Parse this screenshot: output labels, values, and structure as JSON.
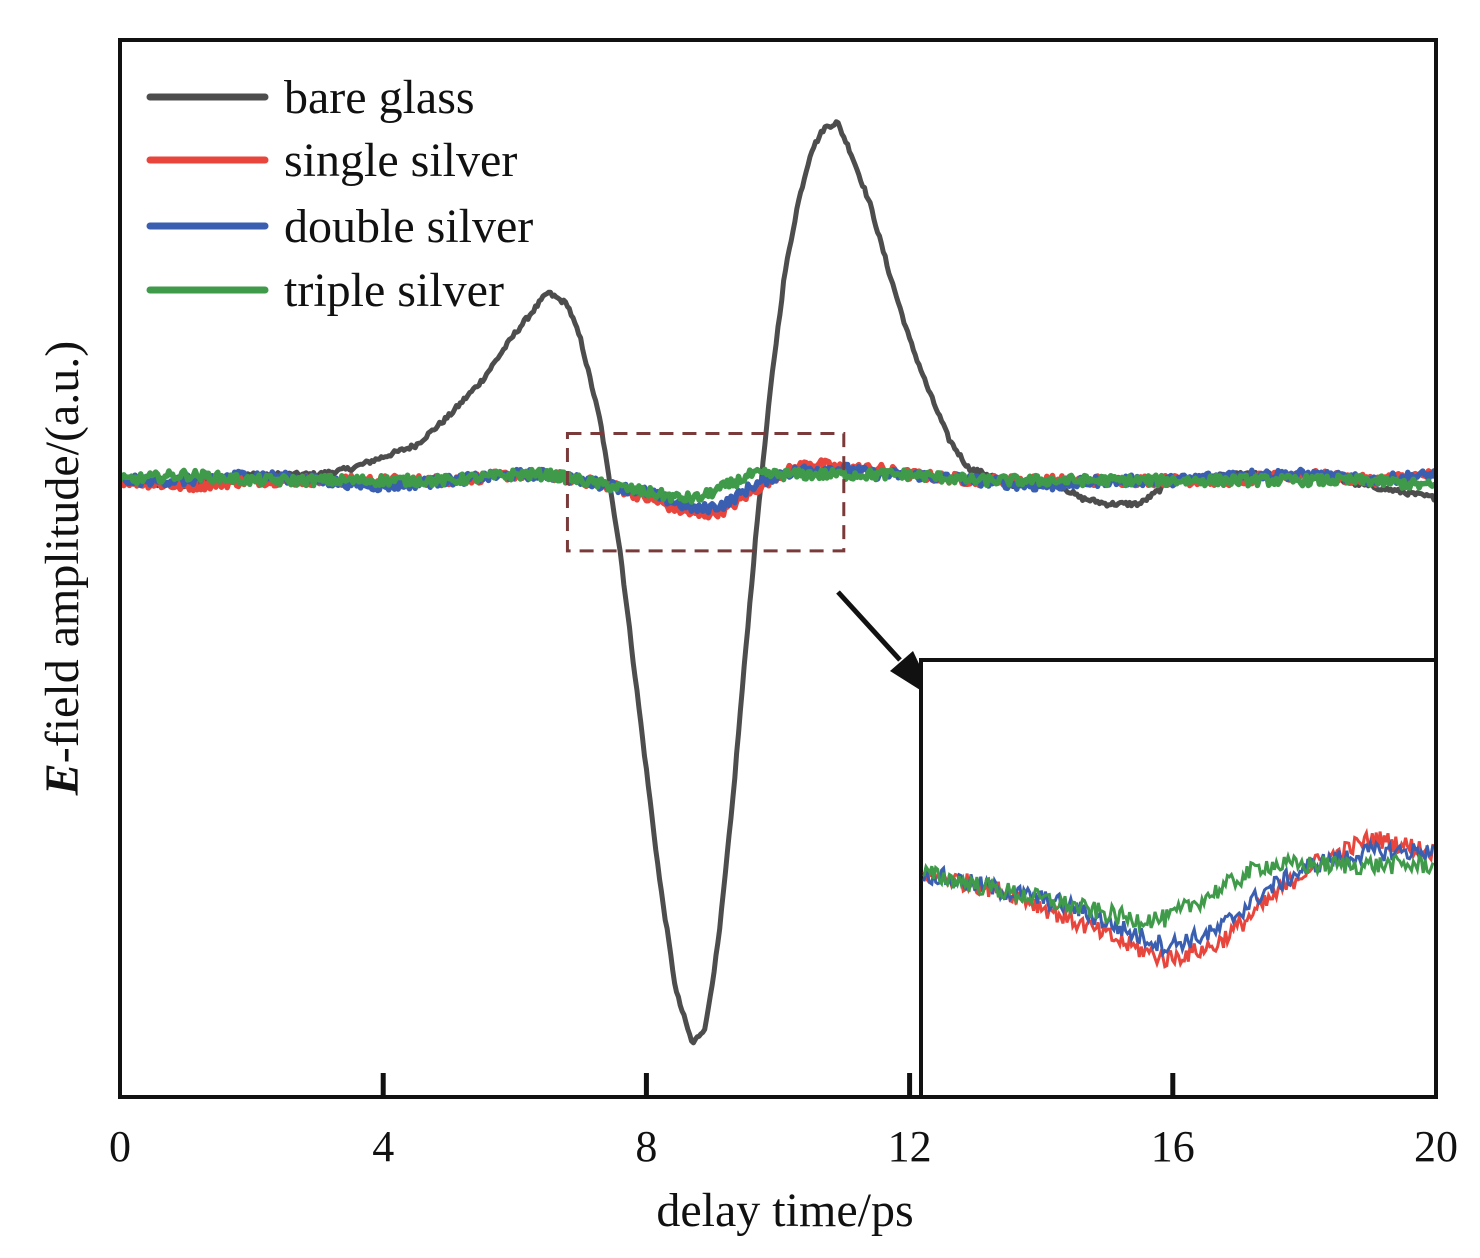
{
  "chart_data": {
    "type": "line",
    "xlabel": "delay time/ps",
    "ylabel_prefix": "E",
    "ylabel_rest": "-field amplitude/(a.u.)",
    "xlim": [
      0,
      20
    ],
    "ylim": [
      -1.05,
      0.75
    ],
    "xticks": [
      0,
      4,
      8,
      12,
      16,
      20
    ],
    "xtick_labels": [
      "0",
      "4",
      "8",
      "12",
      "16",
      "20"
    ],
    "grid": false,
    "legend_position": "top-left",
    "series": [
      {
        "name": "bare glass",
        "color": "#4d4d4d",
        "points": [
          [
            0,
            0
          ],
          [
            1,
            -0.01
          ],
          [
            2,
            0.01
          ],
          [
            3,
            0.01
          ],
          [
            3.5,
            0.02
          ],
          [
            4,
            0.04
          ],
          [
            4.5,
            0.06
          ],
          [
            5,
            0.11
          ],
          [
            5.5,
            0.17
          ],
          [
            6,
            0.25
          ],
          [
            6.5,
            0.32
          ],
          [
            6.8,
            0.3
          ],
          [
            7,
            0.24
          ],
          [
            7.3,
            0.1
          ],
          [
            7.6,
            -0.12
          ],
          [
            7.9,
            -0.4
          ],
          [
            8.2,
            -0.68
          ],
          [
            8.45,
            -0.87
          ],
          [
            8.7,
            -0.96
          ],
          [
            8.9,
            -0.93
          ],
          [
            9.1,
            -0.78
          ],
          [
            9.3,
            -0.56
          ],
          [
            9.5,
            -0.3
          ],
          [
            9.7,
            -0.05
          ],
          [
            9.9,
            0.17
          ],
          [
            10.1,
            0.35
          ],
          [
            10.3,
            0.47
          ],
          [
            10.5,
            0.56
          ],
          [
            10.7,
            0.6
          ],
          [
            10.9,
            0.61
          ],
          [
            11.1,
            0.56
          ],
          [
            11.4,
            0.47
          ],
          [
            11.7,
            0.35
          ],
          [
            12,
            0.24
          ],
          [
            12.3,
            0.15
          ],
          [
            12.6,
            0.07
          ],
          [
            12.9,
            0.02
          ],
          [
            13.2,
            0.01
          ],
          [
            13.6,
            -0.01
          ],
          [
            14,
            0
          ],
          [
            14.3,
            -0.01
          ],
          [
            14.6,
            -0.03
          ],
          [
            15,
            -0.04
          ],
          [
            15.5,
            -0.04
          ],
          [
            16,
            0
          ],
          [
            17,
            0.01
          ],
          [
            18,
            0.01
          ],
          [
            19,
            -0.01
          ],
          [
            20,
            -0.03
          ]
        ]
      },
      {
        "name": "single silver",
        "color": "#e8453c",
        "points": [
          [
            0,
            0
          ],
          [
            1,
            -0.01
          ],
          [
            2,
            0
          ],
          [
            3,
            0
          ],
          [
            4,
            0
          ],
          [
            5,
            0
          ],
          [
            6,
            0.01
          ],
          [
            6.5,
            0.01
          ],
          [
            7,
            0
          ],
          [
            7.5,
            -0.01
          ],
          [
            8,
            -0.03
          ],
          [
            8.5,
            -0.05
          ],
          [
            8.8,
            -0.06
          ],
          [
            9.2,
            -0.05
          ],
          [
            9.6,
            -0.02
          ],
          [
            10,
            0.01
          ],
          [
            10.5,
            0.03
          ],
          [
            11,
            0.02
          ],
          [
            11.5,
            0.02
          ],
          [
            12,
            0.01
          ],
          [
            13,
            0
          ],
          [
            14,
            0
          ],
          [
            15,
            0
          ],
          [
            16,
            0
          ],
          [
            17,
            0
          ],
          [
            18,
            0.01
          ],
          [
            19,
            0
          ],
          [
            20,
            0.01
          ]
        ]
      },
      {
        "name": "double silver",
        "color": "#3a5fb0",
        "points": [
          [
            0,
            0
          ],
          [
            1,
            0
          ],
          [
            2,
            0.01
          ],
          [
            3,
            0
          ],
          [
            4,
            -0.01
          ],
          [
            5,
            0
          ],
          [
            6,
            0.01
          ],
          [
            6.5,
            0.01
          ],
          [
            7,
            0
          ],
          [
            7.5,
            -0.01
          ],
          [
            8,
            -0.02
          ],
          [
            8.5,
            -0.04
          ],
          [
            8.8,
            -0.05
          ],
          [
            9.2,
            -0.04
          ],
          [
            9.6,
            -0.01
          ],
          [
            10,
            0.01
          ],
          [
            10.5,
            0.02
          ],
          [
            11,
            0.02
          ],
          [
            11.5,
            0.01
          ],
          [
            12,
            0.01
          ],
          [
            13,
            0
          ],
          [
            14,
            -0.01
          ],
          [
            15,
            0
          ],
          [
            16,
            0
          ],
          [
            17,
            0.01
          ],
          [
            18,
            0.01
          ],
          [
            19,
            0
          ],
          [
            20,
            0.01
          ]
        ]
      },
      {
        "name": "triple silver",
        "color": "#3f9a4a",
        "points": [
          [
            0,
            0
          ],
          [
            1,
            0.01
          ],
          [
            2,
            0
          ],
          [
            3,
            0
          ],
          [
            4,
            0
          ],
          [
            5,
            0
          ],
          [
            6,
            0.01
          ],
          [
            6.5,
            0.01
          ],
          [
            7,
            0
          ],
          [
            7.5,
            -0.01
          ],
          [
            8,
            -0.02
          ],
          [
            8.5,
            -0.03
          ],
          [
            8.8,
            -0.03
          ],
          [
            9.2,
            -0.01
          ],
          [
            9.6,
            0.01
          ],
          [
            10,
            0.01
          ],
          [
            10.5,
            0.01
          ],
          [
            11,
            0.01
          ],
          [
            11.5,
            0.01
          ],
          [
            12,
            0.01
          ],
          [
            13,
            0
          ],
          [
            14,
            0
          ],
          [
            15,
            0
          ],
          [
            16,
            0
          ],
          [
            17,
            0
          ],
          [
            18,
            0
          ],
          [
            19,
            0
          ],
          [
            20,
            -0.01
          ]
        ]
      }
    ],
    "zoom_region": {
      "x": [
        6.8,
        11
      ],
      "y": [
        -0.12,
        0.08
      ]
    }
  }
}
